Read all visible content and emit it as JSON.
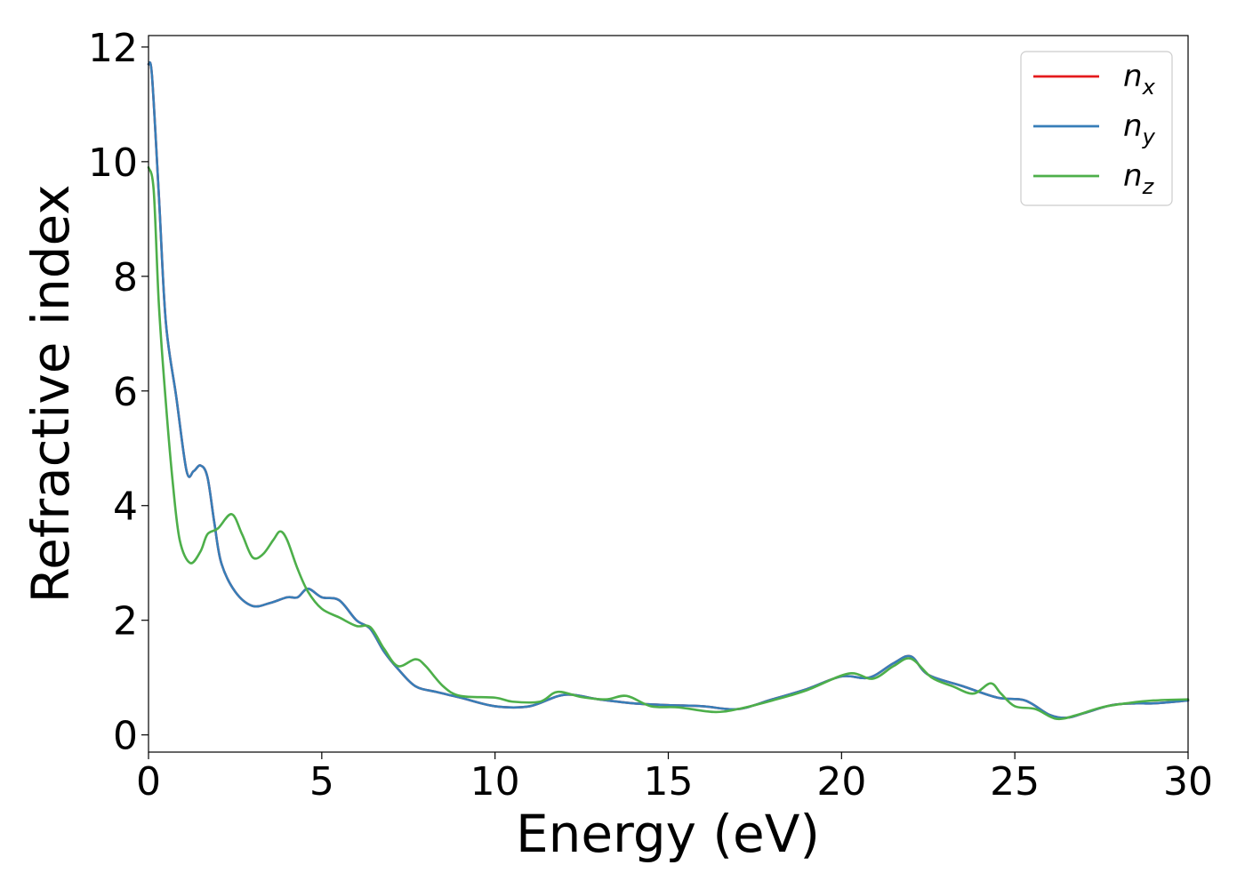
{
  "chart_data": {
    "type": "line",
    "title": "",
    "xlabel": "Energy (eV)",
    "ylabel": "Refractive index",
    "xlim": [
      0,
      30
    ],
    "ylim": [
      -0.3,
      12.2
    ],
    "xticks": [
      0,
      5,
      10,
      15,
      20,
      25,
      30
    ],
    "yticks": [
      0,
      2,
      4,
      6,
      8,
      10,
      12
    ],
    "xtick_labels": [
      "0",
      "5",
      "10",
      "15",
      "20",
      "25",
      "30"
    ],
    "ytick_labels": [
      "0",
      "2",
      "4",
      "6",
      "8",
      "10",
      "12"
    ],
    "grid": false,
    "legend_position": "top-right",
    "legend": [
      {
        "base": "n",
        "sub": "x",
        "color": "#e41a1c"
      },
      {
        "base": "n",
        "sub": "y",
        "color": "#377eb8"
      },
      {
        "base": "n",
        "sub": "z",
        "color": "#4daf4a"
      }
    ],
    "series": [
      {
        "name": "nx",
        "color": "#e41a1c",
        "points": [
          [
            0,
            11.7
          ],
          [
            0.1,
            11.5
          ],
          [
            0.3,
            9.4
          ],
          [
            0.5,
            7.2
          ],
          [
            0.8,
            5.9
          ],
          [
            1.1,
            4.6
          ],
          [
            1.3,
            4.6
          ],
          [
            1.5,
            4.7
          ],
          [
            1.7,
            4.5
          ],
          [
            1.9,
            3.7
          ],
          [
            2.1,
            3.0
          ],
          [
            2.5,
            2.5
          ],
          [
            3.0,
            2.25
          ],
          [
            3.5,
            2.3
          ],
          [
            4.0,
            2.4
          ],
          [
            4.3,
            2.4
          ],
          [
            4.6,
            2.55
          ],
          [
            5.0,
            2.4
          ],
          [
            5.5,
            2.35
          ],
          [
            6.0,
            2.0
          ],
          [
            6.4,
            1.85
          ],
          [
            6.8,
            1.45
          ],
          [
            7.2,
            1.15
          ],
          [
            7.7,
            0.85
          ],
          [
            8.3,
            0.75
          ],
          [
            9.0,
            0.65
          ],
          [
            10.0,
            0.5
          ],
          [
            11.0,
            0.5
          ],
          [
            12.0,
            0.7
          ],
          [
            13.0,
            0.62
          ],
          [
            14.0,
            0.55
          ],
          [
            15.0,
            0.52
          ],
          [
            16.0,
            0.5
          ],
          [
            17.0,
            0.45
          ],
          [
            18.0,
            0.62
          ],
          [
            19.0,
            0.8
          ],
          [
            20.0,
            1.02
          ],
          [
            20.8,
            1.0
          ],
          [
            21.5,
            1.25
          ],
          [
            22.0,
            1.37
          ],
          [
            22.5,
            1.05
          ],
          [
            23.5,
            0.85
          ],
          [
            24.5,
            0.65
          ],
          [
            25.3,
            0.6
          ],
          [
            26.0,
            0.35
          ],
          [
            26.5,
            0.3
          ],
          [
            27.0,
            0.38
          ],
          [
            27.8,
            0.52
          ],
          [
            28.5,
            0.55
          ],
          [
            29.0,
            0.55
          ],
          [
            30.0,
            0.6
          ]
        ]
      },
      {
        "name": "ny",
        "color": "#377eb8",
        "points": [
          [
            0,
            11.7
          ],
          [
            0.1,
            11.5
          ],
          [
            0.3,
            9.4
          ],
          [
            0.5,
            7.2
          ],
          [
            0.8,
            5.9
          ],
          [
            1.1,
            4.6
          ],
          [
            1.3,
            4.6
          ],
          [
            1.5,
            4.7
          ],
          [
            1.7,
            4.5
          ],
          [
            1.9,
            3.7
          ],
          [
            2.1,
            3.0
          ],
          [
            2.5,
            2.5
          ],
          [
            3.0,
            2.25
          ],
          [
            3.5,
            2.3
          ],
          [
            4.0,
            2.4
          ],
          [
            4.3,
            2.4
          ],
          [
            4.6,
            2.55
          ],
          [
            5.0,
            2.4
          ],
          [
            5.5,
            2.35
          ],
          [
            6.0,
            2.0
          ],
          [
            6.4,
            1.85
          ],
          [
            6.8,
            1.45
          ],
          [
            7.2,
            1.15
          ],
          [
            7.7,
            0.85
          ],
          [
            8.3,
            0.75
          ],
          [
            9.0,
            0.65
          ],
          [
            10.0,
            0.5
          ],
          [
            11.0,
            0.5
          ],
          [
            12.0,
            0.7
          ],
          [
            13.0,
            0.62
          ],
          [
            14.0,
            0.55
          ],
          [
            15.0,
            0.52
          ],
          [
            16.0,
            0.5
          ],
          [
            17.0,
            0.45
          ],
          [
            18.0,
            0.62
          ],
          [
            19.0,
            0.8
          ],
          [
            20.0,
            1.02
          ],
          [
            20.8,
            1.0
          ],
          [
            21.5,
            1.25
          ],
          [
            22.0,
            1.37
          ],
          [
            22.5,
            1.05
          ],
          [
            23.5,
            0.85
          ],
          [
            24.5,
            0.65
          ],
          [
            25.3,
            0.6
          ],
          [
            26.0,
            0.35
          ],
          [
            26.5,
            0.3
          ],
          [
            27.0,
            0.38
          ],
          [
            27.8,
            0.52
          ],
          [
            28.5,
            0.55
          ],
          [
            29.0,
            0.55
          ],
          [
            30.0,
            0.6
          ]
        ]
      },
      {
        "name": "nz",
        "color": "#4daf4a",
        "points": [
          [
            0,
            9.9
          ],
          [
            0.15,
            9.5
          ],
          [
            0.3,
            7.5
          ],
          [
            0.5,
            5.8
          ],
          [
            0.7,
            4.4
          ],
          [
            0.9,
            3.4
          ],
          [
            1.2,
            3.0
          ],
          [
            1.5,
            3.2
          ],
          [
            1.7,
            3.5
          ],
          [
            2.0,
            3.6
          ],
          [
            2.4,
            3.85
          ],
          [
            2.7,
            3.5
          ],
          [
            3.0,
            3.1
          ],
          [
            3.3,
            3.15
          ],
          [
            3.6,
            3.4
          ],
          [
            3.8,
            3.55
          ],
          [
            4.0,
            3.4
          ],
          [
            4.3,
            2.9
          ],
          [
            4.6,
            2.5
          ],
          [
            5.0,
            2.2
          ],
          [
            5.5,
            2.05
          ],
          [
            6.0,
            1.9
          ],
          [
            6.4,
            1.88
          ],
          [
            6.8,
            1.5
          ],
          [
            7.2,
            1.2
          ],
          [
            7.7,
            1.32
          ],
          [
            8.0,
            1.2
          ],
          [
            8.5,
            0.85
          ],
          [
            9.0,
            0.68
          ],
          [
            10.0,
            0.65
          ],
          [
            10.5,
            0.58
          ],
          [
            11.3,
            0.58
          ],
          [
            11.8,
            0.75
          ],
          [
            12.5,
            0.66
          ],
          [
            13.2,
            0.62
          ],
          [
            13.8,
            0.68
          ],
          [
            14.5,
            0.5
          ],
          [
            15.3,
            0.48
          ],
          [
            16.3,
            0.4
          ],
          [
            17.0,
            0.45
          ],
          [
            18.0,
            0.6
          ],
          [
            19.0,
            0.78
          ],
          [
            20.2,
            1.07
          ],
          [
            20.9,
            0.98
          ],
          [
            21.5,
            1.2
          ],
          [
            22.0,
            1.33
          ],
          [
            22.6,
            1.0
          ],
          [
            23.2,
            0.85
          ],
          [
            23.8,
            0.72
          ],
          [
            24.3,
            0.9
          ],
          [
            24.6,
            0.72
          ],
          [
            25.0,
            0.5
          ],
          [
            25.6,
            0.45
          ],
          [
            26.2,
            0.28
          ],
          [
            26.8,
            0.35
          ],
          [
            27.5,
            0.48
          ],
          [
            28.2,
            0.55
          ],
          [
            29.0,
            0.6
          ],
          [
            30.0,
            0.62
          ]
        ]
      }
    ]
  }
}
